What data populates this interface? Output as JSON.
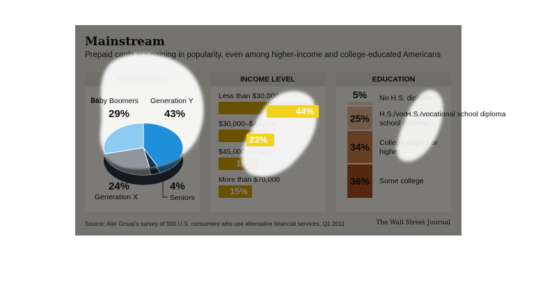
{
  "title": "Mainstream",
  "subtitle": "Prepaid cards are gaining in popularity, even among higher-income and college-educated Americans",
  "source": "Source: Aite Group's survey of 500 U.S. consumers who use alternative financial services, Q1 2011",
  "credit": "The Wall Street Journal",
  "colors": {
    "gen_y": "#1e8fd8",
    "baby_boomers": "#8ecbf2",
    "generation_x": "#8f969c",
    "seniors": "#16344d",
    "income_bar": "#d3a300",
    "edu_no_hs": "#eed9c2",
    "edu_hs": "#e4b590",
    "edu_college_degree": "#cd7f45",
    "edu_some_college": "#a84f1c"
  },
  "chart_data": [
    {
      "type": "pie",
      "panel_title": "GENERATION",
      "labels": [
        "Generation Y",
        "Seniors",
        "Generation X",
        "Baby Boomers"
      ],
      "values": [
        43,
        4,
        24,
        29
      ],
      "display": [
        "43%",
        "4%",
        "24%",
        "29%"
      ]
    },
    {
      "type": "bar",
      "panel_title": "INCOME LEVEL",
      "categories": [
        "Less than $30,000",
        "$30,000–$44,999",
        "$45,000-69,000",
        "More than $70,000"
      ],
      "values": [
        44,
        23,
        18,
        15
      ],
      "display": [
        "44%",
        "23%",
        "18%",
        "15%"
      ]
    },
    {
      "type": "bar",
      "panel_title": "EDUCATION",
      "stacked": true,
      "categories": [
        "No H.S. diploma",
        "H.S./vocational school diploma",
        "College degree or higher",
        "Some college"
      ],
      "values": [
        5,
        25,
        34,
        36
      ],
      "display": [
        "5%",
        "25%",
        "34%",
        "36%"
      ]
    }
  ]
}
